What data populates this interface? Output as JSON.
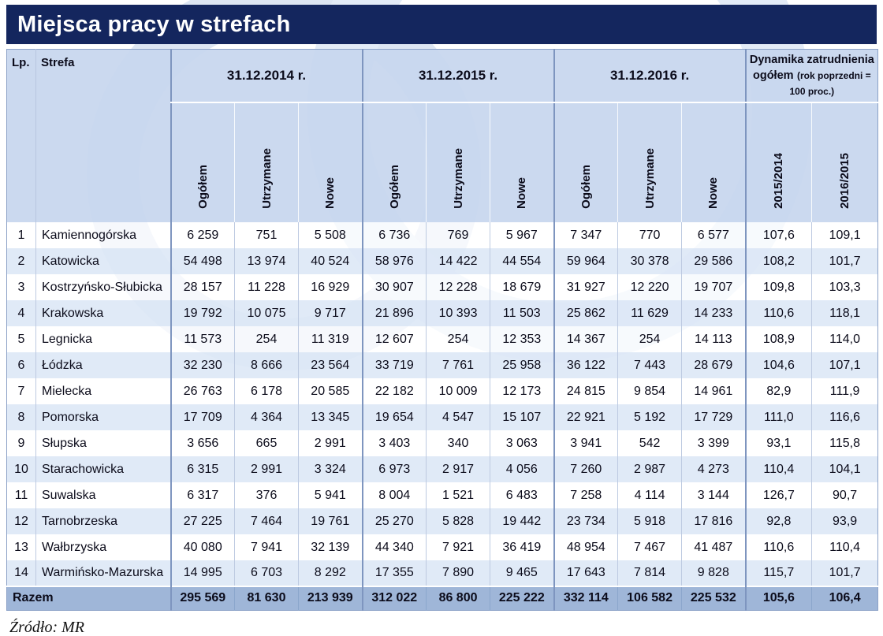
{
  "colors": {
    "title_bar": "#14265e",
    "header_bg": "#c7d6ee",
    "row_alt": "#dde8f6",
    "total_row_bg": "#9fb6d8",
    "watermark": "#dde6f3"
  },
  "chart_data": {
    "type": "table",
    "title": "Miejsca pracy w strefach",
    "source": "Źródło: MR",
    "header": {
      "lp": "Lp.",
      "zone": "Strefa",
      "groups": [
        "31.12.2014 r.",
        "31.12.2015 r.",
        "31.12.2016 r."
      ],
      "group_subcolumns": [
        "Ogółem",
        "Utrzymane",
        "Nowe"
      ],
      "dynamics_title": "Dynamika zatrudnienia ogółem",
      "dynamics_note": "(rok poprzedni = 100 proc.)",
      "dynamics_columns": [
        "2015/2014",
        "2016/2015"
      ]
    },
    "rows": [
      {
        "lp": "1",
        "zone": "Kamiennogórska",
        "values": [
          "6 259",
          "751",
          "5 508",
          "6 736",
          "769",
          "5 967",
          "7 347",
          "770",
          "6 577",
          "107,6",
          "109,1"
        ]
      },
      {
        "lp": "2",
        "zone": "Katowicka",
        "values": [
          "54 498",
          "13 974",
          "40 524",
          "58 976",
          "14 422",
          "44 554",
          "59 964",
          "30 378",
          "29 586",
          "108,2",
          "101,7"
        ]
      },
      {
        "lp": "3",
        "zone": "Kostrzyńsko-Słubicka",
        "values": [
          "28 157",
          "11 228",
          "16 929",
          "30 907",
          "12 228",
          "18 679",
          "31 927",
          "12 220",
          "19 707",
          "109,8",
          "103,3"
        ]
      },
      {
        "lp": "4",
        "zone": "Krakowska",
        "values": [
          "19 792",
          "10 075",
          "9 717",
          "21 896",
          "10 393",
          "11 503",
          "25 862",
          "11 629",
          "14 233",
          "110,6",
          "118,1"
        ]
      },
      {
        "lp": "5",
        "zone": "Legnicka",
        "values": [
          "11 573",
          "254",
          "11 319",
          "12 607",
          "254",
          "12 353",
          "14 367",
          "254",
          "14 113",
          "108,9",
          "114,0"
        ]
      },
      {
        "lp": "6",
        "zone": "Łódzka",
        "values": [
          "32 230",
          "8 666",
          "23 564",
          "33 719",
          "7 761",
          "25 958",
          "36 122",
          "7 443",
          "28 679",
          "104,6",
          "107,1"
        ]
      },
      {
        "lp": "7",
        "zone": "Mielecka",
        "values": [
          "26 763",
          "6 178",
          "20 585",
          "22 182",
          "10 009",
          "12 173",
          "24 815",
          "9 854",
          "14 961",
          "82,9",
          "111,9"
        ]
      },
      {
        "lp": "8",
        "zone": "Pomorska",
        "values": [
          "17 709",
          "4 364",
          "13 345",
          "19 654",
          "4 547",
          "15 107",
          "22 921",
          "5 192",
          "17 729",
          "111,0",
          "116,6"
        ]
      },
      {
        "lp": "9",
        "zone": "Słupska",
        "values": [
          "3 656",
          "665",
          "2 991",
          "3 403",
          "340",
          "3 063",
          "3 941",
          "542",
          "3 399",
          "93,1",
          "115,8"
        ]
      },
      {
        "lp": "10",
        "zone": "Starachowicka",
        "values": [
          "6 315",
          "2 991",
          "3 324",
          "6 973",
          "2 917",
          "4 056",
          "7 260",
          "2 987",
          "4 273",
          "110,4",
          "104,1"
        ]
      },
      {
        "lp": "11",
        "zone": "Suwalska",
        "values": [
          "6 317",
          "376",
          "5 941",
          "8 004",
          "1 521",
          "6 483",
          "7 258",
          "4 114",
          "3 144",
          "126,7",
          "90,7"
        ]
      },
      {
        "lp": "12",
        "zone": "Tarnobrzeska",
        "values": [
          "27 225",
          "7 464",
          "19 761",
          "25 270",
          "5 828",
          "19 442",
          "23 734",
          "5 918",
          "17 816",
          "92,8",
          "93,9"
        ]
      },
      {
        "lp": "13",
        "zone": "Wałbrzyska",
        "values": [
          "40 080",
          "7 941",
          "32 139",
          "44 340",
          "7 921",
          "36 419",
          "48 954",
          "7 467",
          "41 487",
          "110,6",
          "110,4"
        ]
      },
      {
        "lp": "14",
        "zone": "Warmińsko-Mazurska",
        "values": [
          "14 995",
          "6 703",
          "8 292",
          "17 355",
          "7 890",
          "9 465",
          "17 643",
          "7 814",
          "9 828",
          "115,7",
          "101,7"
        ]
      }
    ],
    "total": {
      "label": "Razem",
      "values": [
        "295 569",
        "81 630",
        "213 939",
        "312 022",
        "86 800",
        "225 222",
        "332 114",
        "106 582",
        "225 532",
        "105,6",
        "106,4"
      ]
    }
  }
}
